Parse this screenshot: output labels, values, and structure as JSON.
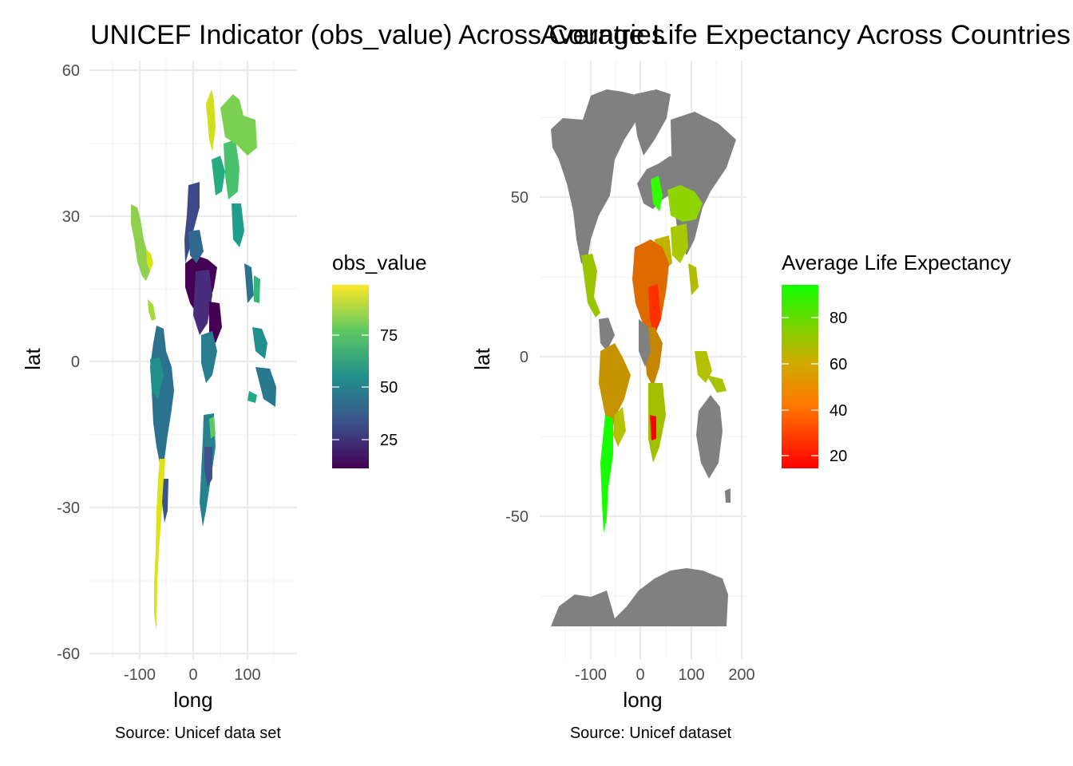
{
  "left": {
    "title": "UNICEF Indicator (obs_value) Across Countries",
    "xlabel": "long",
    "ylabel": "lat",
    "caption": "Source: Unicef data set",
    "x_ticks": [
      "-100",
      "0",
      "100"
    ],
    "y_ticks": [
      "60",
      "30",
      "0",
      "-30",
      "-60"
    ],
    "legend": {
      "title": "obs_value",
      "ticks": [
        "75",
        "50",
        "25"
      ]
    },
    "colors": {
      "low": "#440154",
      "mid_low": "#3b528b",
      "mid": "#21908c",
      "mid_high": "#5ec962",
      "high": "#fde725"
    }
  },
  "right": {
    "title": "Average Life Expectancy Across Countries",
    "xlabel": "long",
    "ylabel": "lat",
    "caption": "Source: Unicef dataset",
    "x_ticks": [
      "-100",
      "0",
      "100",
      "200"
    ],
    "y_ticks": [
      "50",
      "0",
      "-50"
    ],
    "legend": {
      "title": "Average Life Expectancy",
      "ticks": [
        "80",
        "60",
        "40",
        "20"
      ]
    },
    "colors": {
      "low": "#ff0000",
      "high": "#00ff00",
      "na": "#808080"
    }
  }
}
